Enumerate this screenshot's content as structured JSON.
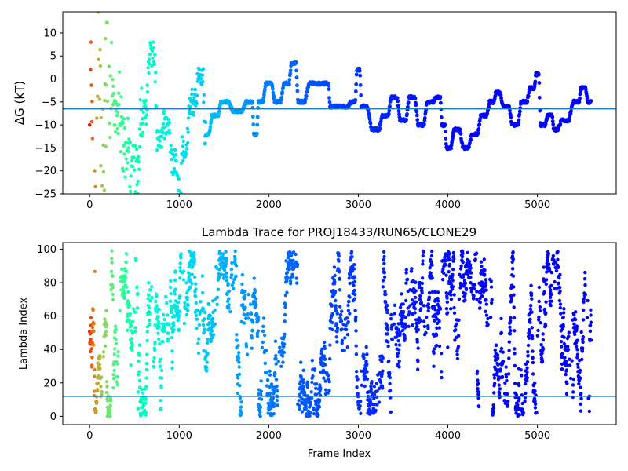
{
  "chart_data": [
    {
      "type": "scatter",
      "title": "",
      "xlabel": "",
      "ylabel": "ΔG (kT)",
      "xlim": [
        -300,
        5880
      ],
      "ylim": [
        -25,
        14.6
      ],
      "xticks": [
        0,
        1000,
        2000,
        3000,
        4000,
        5000
      ],
      "yticks": [
        -25,
        -20,
        -15,
        -10,
        -5,
        0,
        5,
        10
      ],
      "hline": -6.5,
      "hline_color": "#1f77b4",
      "grid": false,
      "colormap": "rainbow (red at frame 0 to violet at last frame)",
      "trace_keypoints": [
        [
          0,
          10
        ],
        [
          50,
          -22
        ],
        [
          100,
          13
        ],
        [
          150,
          -24
        ],
        [
          200,
          6
        ],
        [
          300,
          -5
        ],
        [
          400,
          -15
        ],
        [
          500,
          -21
        ],
        [
          600,
          -7
        ],
        [
          700,
          5.5
        ],
        [
          780,
          -14
        ],
        [
          850,
          -10
        ],
        [
          950,
          -18
        ],
        [
          1000,
          -24
        ],
        [
          1050,
          -15
        ],
        [
          1150,
          -5
        ],
        [
          1250,
          1.5
        ],
        [
          1300,
          -12
        ],
        [
          1400,
          -8
        ],
        [
          1500,
          -5
        ],
        [
          1650,
          -7
        ],
        [
          1800,
          -5
        ],
        [
          1850,
          -12
        ],
        [
          1900,
          -5
        ],
        [
          2000,
          -1
        ],
        [
          2100,
          -5
        ],
        [
          2200,
          -1
        ],
        [
          2280,
          3.5
        ],
        [
          2350,
          -5
        ],
        [
          2500,
          -1
        ],
        [
          2650,
          -1
        ],
        [
          2700,
          -6
        ],
        [
          2850,
          -6
        ],
        [
          2950,
          -5
        ],
        [
          3000,
          2
        ],
        [
          3050,
          -6
        ],
        [
          3200,
          -11
        ],
        [
          3300,
          -8
        ],
        [
          3400,
          -4
        ],
        [
          3500,
          -9
        ],
        [
          3600,
          -4
        ],
        [
          3700,
          -10
        ],
        [
          3800,
          -5
        ],
        [
          3900,
          -4
        ],
        [
          3950,
          -10
        ],
        [
          4000,
          -15
        ],
        [
          4100,
          -11
        ],
        [
          4200,
          -15
        ],
        [
          4300,
          -12
        ],
        [
          4400,
          -8
        ],
        [
          4500,
          -5
        ],
        [
          4550,
          -3
        ],
        [
          4650,
          -6
        ],
        [
          4750,
          -10
        ],
        [
          4850,
          -5
        ],
        [
          4950,
          -2
        ],
        [
          5000,
          1
        ],
        [
          5050,
          -10
        ],
        [
          5150,
          -8
        ],
        [
          5200,
          -11
        ],
        [
          5300,
          -9
        ],
        [
          5450,
          -5
        ],
        [
          5500,
          -2
        ],
        [
          5600,
          -5
        ]
      ]
    },
    {
      "type": "scatter",
      "title": "Lambda Trace for PROJ18433/RUN65/CLONE29",
      "xlabel": "Frame Index",
      "ylabel": "Lambda Index",
      "xlim": [
        -300,
        5880
      ],
      "ylim": [
        -5,
        104
      ],
      "xticks": [
        0,
        1000,
        2000,
        3000,
        4000,
        5000
      ],
      "yticks": [
        0,
        20,
        40,
        60,
        80,
        100
      ],
      "hline": 12,
      "hline_color": "#1f77b4",
      "grid": false,
      "colormap": "rainbow (red at frame 0 to violet at last frame)",
      "frames": [
        0,
        5600
      ],
      "lambda_range": [
        0,
        99
      ]
    }
  ],
  "icons": {
    "colorbar_note": "marker colors follow frame order"
  }
}
